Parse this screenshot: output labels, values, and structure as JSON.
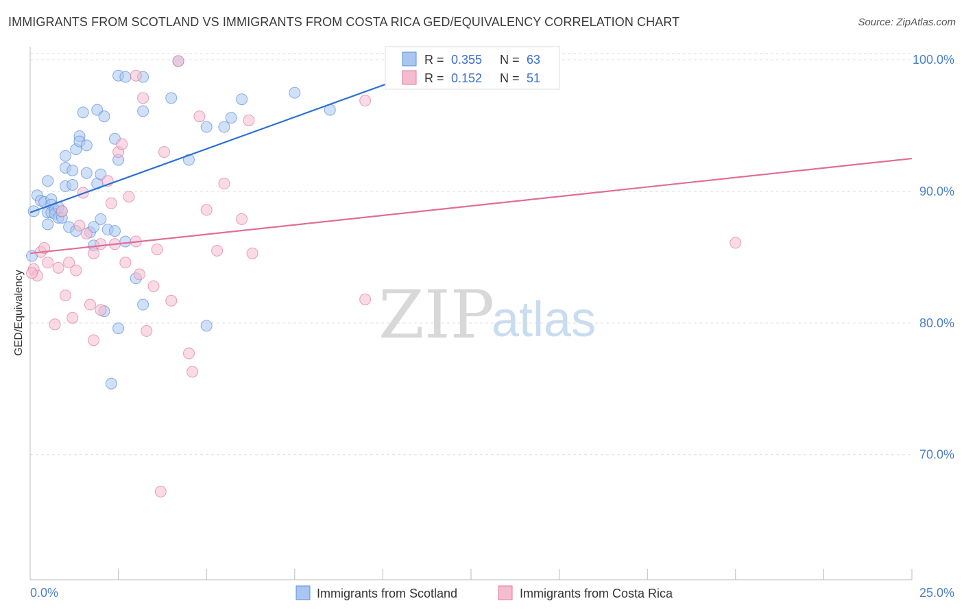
{
  "title": "IMMIGRANTS FROM SCOTLAND VS IMMIGRANTS FROM COSTA RICA GED/EQUIVALENCY CORRELATION CHART",
  "source": "Source: ZipAtlas.com",
  "watermark": {
    "zip": "ZIP",
    "atlas": "atlas"
  },
  "colors": {
    "scotland": "#5b8fe0",
    "scotland_fill": "#a9c6f0",
    "costa_rica": "#e07aa0",
    "costa_rica_fill": "#f5bcd0",
    "tick_label": "#4a7fc9"
  },
  "legend": {
    "r_label": "R =",
    "n_label": "N =",
    "scotland": {
      "r": "0.355",
      "n": "63"
    },
    "costa_rica": {
      "r": "0.152",
      "n": "51"
    }
  },
  "chart_data": {
    "type": "scatter",
    "title": "IMMIGRANTS FROM SCOTLAND VS IMMIGRANTS FROM COSTA RICA GED/EQUIVALENCY CORRELATION CHART",
    "xlabel": "",
    "ylabel": "GED/Equivalency",
    "xlim": [
      0,
      25
    ],
    "ylim": [
      60.5,
      101
    ],
    "x_tick_labels": [
      "0.0%",
      "25.0%"
    ],
    "y_ticks": [
      70,
      80,
      90,
      100
    ],
    "y_tick_labels": [
      "70.0%",
      "80.0%",
      "90.0%",
      "100.0%"
    ],
    "grid": true,
    "legend_position": "top-center",
    "series": [
      {
        "name": "Immigrants from Scotland",
        "color": "#5b8fe0",
        "trend": {
          "x": [
            0,
            12
          ],
          "y": [
            88.4,
            100
          ]
        },
        "points": [
          [
            0.1,
            88.5
          ],
          [
            0.2,
            89.7
          ],
          [
            0.3,
            89.3
          ],
          [
            0.4,
            89.2
          ],
          [
            0.5,
            90.8
          ],
          [
            0.5,
            88.4
          ],
          [
            0.6,
            89.4
          ],
          [
            0.6,
            89.0
          ],
          [
            0.5,
            87.5
          ],
          [
            0.6,
            88.4
          ],
          [
            0.7,
            88.6
          ],
          [
            0.7,
            88.3
          ],
          [
            0.8,
            88.8
          ],
          [
            0.8,
            88.0
          ],
          [
            0.9,
            88.0
          ],
          [
            0.9,
            88.5
          ],
          [
            1.0,
            91.8
          ],
          [
            1.0,
            90.4
          ],
          [
            1.0,
            92.7
          ],
          [
            1.1,
            87.3
          ],
          [
            1.2,
            91.6
          ],
          [
            1.2,
            90.5
          ],
          [
            1.3,
            87.0
          ],
          [
            1.3,
            93.2
          ],
          [
            1.4,
            94.2
          ],
          [
            1.4,
            93.8
          ],
          [
            1.5,
            96.0
          ],
          [
            1.6,
            93.5
          ],
          [
            1.6,
            91.4
          ],
          [
            1.7,
            86.9
          ],
          [
            1.8,
            87.3
          ],
          [
            1.8,
            85.9
          ],
          [
            1.9,
            90.6
          ],
          [
            1.9,
            96.2
          ],
          [
            2.0,
            87.9
          ],
          [
            2.0,
            91.3
          ],
          [
            2.1,
            95.7
          ],
          [
            2.1,
            80.9
          ],
          [
            2.2,
            87.1
          ],
          [
            2.3,
            75.4
          ],
          [
            2.4,
            87.0
          ],
          [
            2.4,
            94.0
          ],
          [
            2.5,
            79.6
          ],
          [
            2.5,
            98.8
          ],
          [
            2.5,
            92.4
          ],
          [
            2.7,
            86.2
          ],
          [
            2.7,
            98.7
          ],
          [
            3.0,
            83.4
          ],
          [
            3.2,
            96.1
          ],
          [
            3.2,
            98.7
          ],
          [
            3.2,
            81.4
          ],
          [
            4.0,
            97.1
          ],
          [
            4.2,
            99.9
          ],
          [
            4.5,
            92.4
          ],
          [
            5.0,
            79.8
          ],
          [
            5.0,
            94.9
          ],
          [
            5.5,
            94.9
          ],
          [
            5.7,
            95.6
          ],
          [
            6.0,
            97.0
          ],
          [
            7.5,
            97.5
          ],
          [
            8.5,
            96.2
          ],
          [
            12.0,
            100.0
          ],
          [
            0.05,
            85.1
          ]
        ]
      },
      {
        "name": "Immigrants from Costa Rica",
        "color": "#e07aa0",
        "trend": {
          "x": [
            0,
            25
          ],
          "y": [
            85.3,
            92.5
          ]
        },
        "points": [
          [
            0.1,
            84.1
          ],
          [
            0.2,
            83.6
          ],
          [
            0.3,
            85.4
          ],
          [
            0.4,
            85.7
          ],
          [
            0.5,
            84.6
          ],
          [
            0.7,
            79.9
          ],
          [
            0.8,
            84.2
          ],
          [
            0.9,
            88.5
          ],
          [
            1.0,
            82.1
          ],
          [
            1.1,
            84.6
          ],
          [
            1.2,
            80.4
          ],
          [
            1.3,
            84.0
          ],
          [
            1.4,
            87.4
          ],
          [
            1.5,
            89.9
          ],
          [
            1.6,
            86.8
          ],
          [
            1.7,
            81.4
          ],
          [
            1.8,
            85.3
          ],
          [
            1.8,
            78.7
          ],
          [
            2.0,
            81.0
          ],
          [
            2.0,
            86.0
          ],
          [
            2.2,
            90.8
          ],
          [
            2.3,
            89.1
          ],
          [
            2.4,
            86.0
          ],
          [
            2.5,
            93.0
          ],
          [
            2.6,
            93.6
          ],
          [
            2.7,
            84.6
          ],
          [
            2.8,
            89.6
          ],
          [
            3.0,
            86.2
          ],
          [
            3.0,
            98.8
          ],
          [
            3.1,
            83.7
          ],
          [
            3.2,
            97.1
          ],
          [
            3.3,
            79.4
          ],
          [
            3.5,
            82.8
          ],
          [
            3.6,
            85.6
          ],
          [
            3.7,
            67.2
          ],
          [
            3.8,
            93.0
          ],
          [
            4.0,
            81.7
          ],
          [
            4.2,
            99.9
          ],
          [
            4.5,
            77.7
          ],
          [
            4.6,
            76.3
          ],
          [
            4.8,
            95.7
          ],
          [
            5.0,
            88.6
          ],
          [
            5.3,
            85.5
          ],
          [
            5.5,
            90.6
          ],
          [
            6.0,
            87.9
          ],
          [
            6.2,
            95.4
          ],
          [
            6.3,
            85.3
          ],
          [
            9.5,
            81.8
          ],
          [
            9.5,
            96.9
          ],
          [
            20.0,
            86.1
          ],
          [
            0.05,
            83.8
          ]
        ]
      }
    ]
  }
}
